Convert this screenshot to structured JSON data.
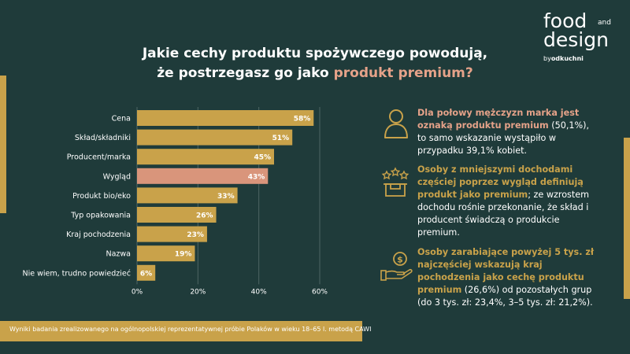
{
  "logo": {
    "line1": "food",
    "small": "and",
    "line2": "design",
    "by": "by",
    "brand": "odkuchni"
  },
  "title": {
    "line1": "Jakie cechy produktu spożywczego powodują,",
    "line2_prefix": "że postrzegasz go jako ",
    "line2_highlight": "produkt premium?"
  },
  "chart_data": {
    "type": "bar",
    "orientation": "horizontal",
    "categories": [
      "Cena",
      "Skład/składniki",
      "Producent/marka",
      "Wygląd",
      "Produkt bio/eko",
      "Typ opakowania",
      "Kraj pochodzenia",
      "Nazwa",
      "Nie wiem, trudno powiedzieć"
    ],
    "values": [
      58,
      51,
      45,
      43,
      33,
      26,
      23,
      19,
      6
    ],
    "value_labels": [
      "58%",
      "51%",
      "45%",
      "43%",
      "33%",
      "26%",
      "23%",
      "19%",
      "6%"
    ],
    "highlighted_category": "Wygląd",
    "xlim": [
      0,
      60
    ],
    "xticks": [
      0,
      20,
      40,
      60
    ],
    "xtick_labels": [
      "0%",
      "20%",
      "40%",
      "60%"
    ],
    "grid": true,
    "colors": {
      "bar": "#c9a24a",
      "highlight": "#d9957b",
      "grid": "#4e6564"
    }
  },
  "notes": [
    {
      "icon": "person-icon",
      "hl": "Dla połowy mężczyzn marka jest oznaką produktu premium",
      "rest": " (50,1%), to samo wskazanie wystąpiło w przypadku 39,1% kobiet."
    },
    {
      "icon": "shopping-box-stars-icon",
      "hl": "Osoby z mniejszymi dochodami częściej poprzez wygląd definiują produkt jako premium",
      "rest": "; ze wzrostem dochodu rośnie przekonanie, że skład i producent świadczą o produkcie premium."
    },
    {
      "icon": "hand-money-icon",
      "hl": "Osoby zarabiające powyżej 5 tys. zł najczęściej wskazują kraj pochodzenia jako cechę produktu premium",
      "rest": " (26,6%) od pozostałych grup (do 3 tys. zł: 23,4%, 3–5 tys. zł: 21,2%)."
    }
  ],
  "footer": "Wyniki badania zrealizowanego na ogólnopolskiej reprezentatywnej próbie Polaków w wieku 18–65 l. metodą CAWI"
}
